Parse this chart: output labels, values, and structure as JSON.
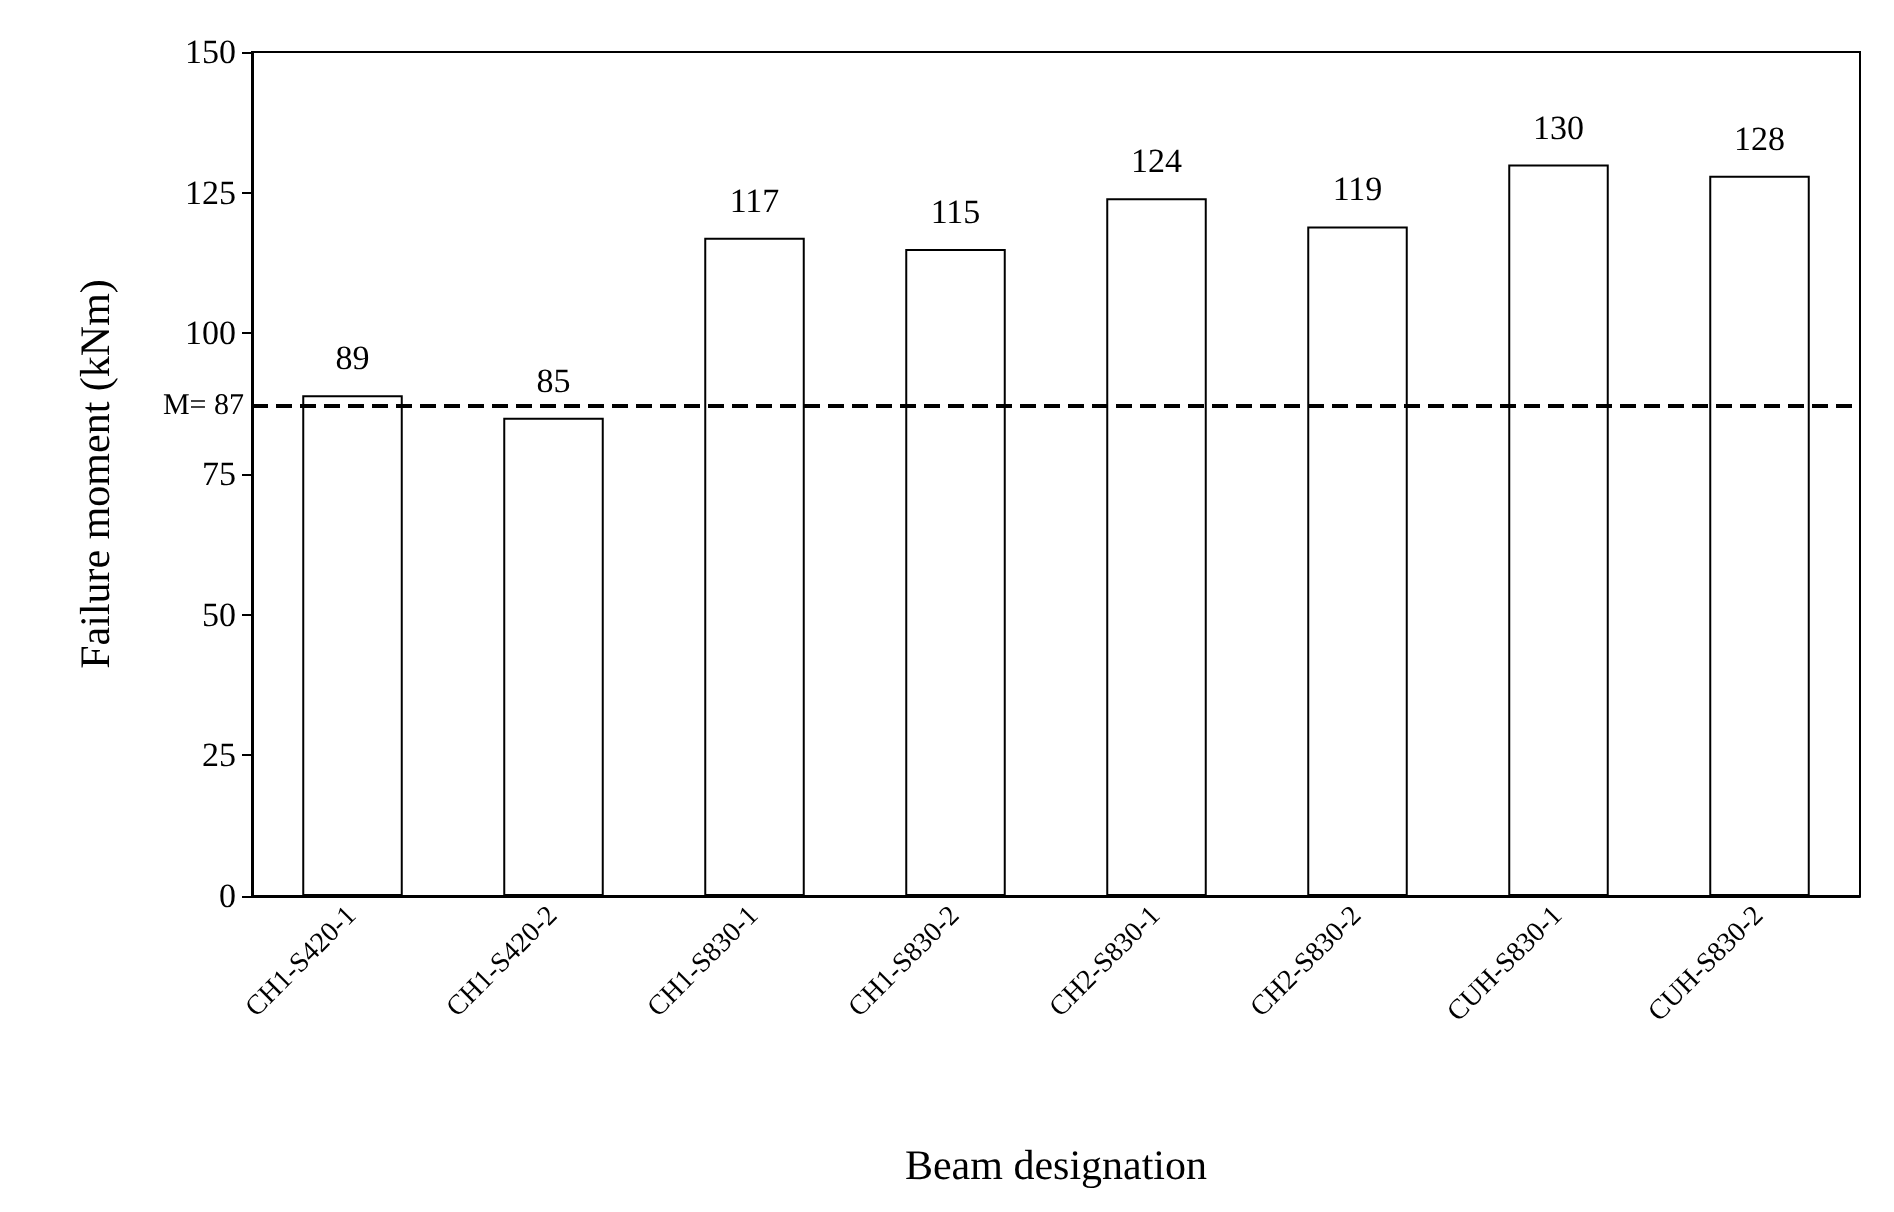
{
  "chart_data": {
    "type": "bar",
    "xlabel": "Beam designation",
    "ylabel": "Failure moment (kNm)",
    "categories": [
      "CH1-S420-1",
      "CH1-S420-2",
      "CH1-S830-1",
      "CH1-S830-2",
      "CH2-S830-1",
      "CH2-S830-2",
      "CUH-S830-1",
      "CUH-S830-2"
    ],
    "values": [
      89,
      85,
      117,
      115,
      124,
      119,
      130,
      128
    ],
    "color": "#ffffff",
    "ylim": [
      0,
      150
    ],
    "yticks": [
      0,
      25,
      50,
      75,
      100,
      125,
      150
    ],
    "grid": false,
    "data_labels": true,
    "ref_lines": [
      {
        "axis": "y",
        "value": 87,
        "label": "M= 87",
        "color": "#000000",
        "line_style": "dashed"
      }
    ]
  }
}
